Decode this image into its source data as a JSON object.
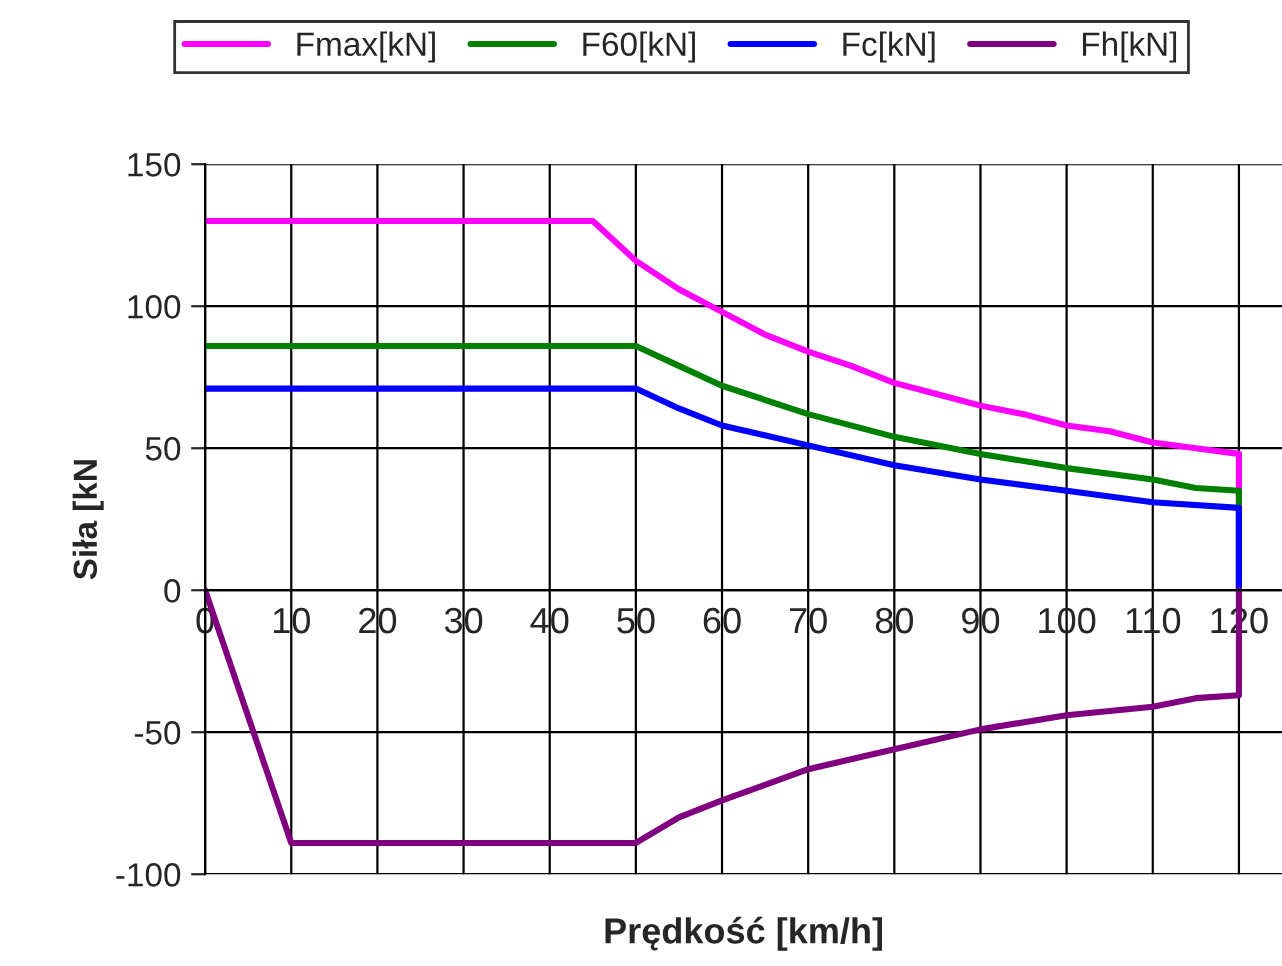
{
  "chart_data": {
    "type": "line",
    "xlabel": "Prędkość [km/h]",
    "ylabel": "Siła [kN",
    "xlim": [
      0,
      125
    ],
    "ylim": [
      -100,
      150
    ],
    "xticks": [
      0,
      10,
      20,
      30,
      40,
      50,
      60,
      70,
      80,
      90,
      100,
      110,
      120
    ],
    "yticks": [
      -100,
      -50,
      0,
      50,
      100,
      150
    ],
    "grid": true,
    "legend": "top",
    "marker": "none",
    "line_style": "solid",
    "series": [
      {
        "name": "Fmax[kN]",
        "color": "#ff00ff",
        "x": [
          0,
          45,
          50,
          55,
          60,
          65,
          70,
          75,
          80,
          85,
          90,
          95,
          100,
          105,
          110,
          115,
          120,
          120
        ],
        "values": [
          130,
          130,
          116,
          106,
          98,
          90,
          84,
          79,
          73,
          69,
          65,
          62,
          58,
          56,
          52,
          50,
          48,
          0
        ]
      },
      {
        "name": "F60[kN]",
        "color": "#008000",
        "x": [
          0,
          50,
          55,
          60,
          70,
          80,
          90,
          100,
          110,
          115,
          120,
          120
        ],
        "values": [
          86,
          86,
          79,
          72,
          62,
          54,
          48,
          43,
          39,
          36,
          35,
          0
        ]
      },
      {
        "name": "Fc[kN]",
        "color": "#0000ff",
        "x": [
          0,
          50,
          55,
          60,
          70,
          80,
          90,
          100,
          110,
          120,
          120
        ],
        "values": [
          71,
          71,
          64,
          58,
          51,
          44,
          39,
          35,
          31,
          29,
          0
        ]
      },
      {
        "name": "Fh[kN]",
        "color": "#800080",
        "x": [
          0,
          10,
          50,
          55,
          60,
          70,
          80,
          90,
          100,
          110,
          115,
          120,
          120
        ],
        "values": [
          0,
          -89,
          -89,
          -80,
          -74,
          -63,
          -56,
          -49,
          -44,
          -41,
          -38,
          -37,
          0
        ]
      }
    ]
  }
}
